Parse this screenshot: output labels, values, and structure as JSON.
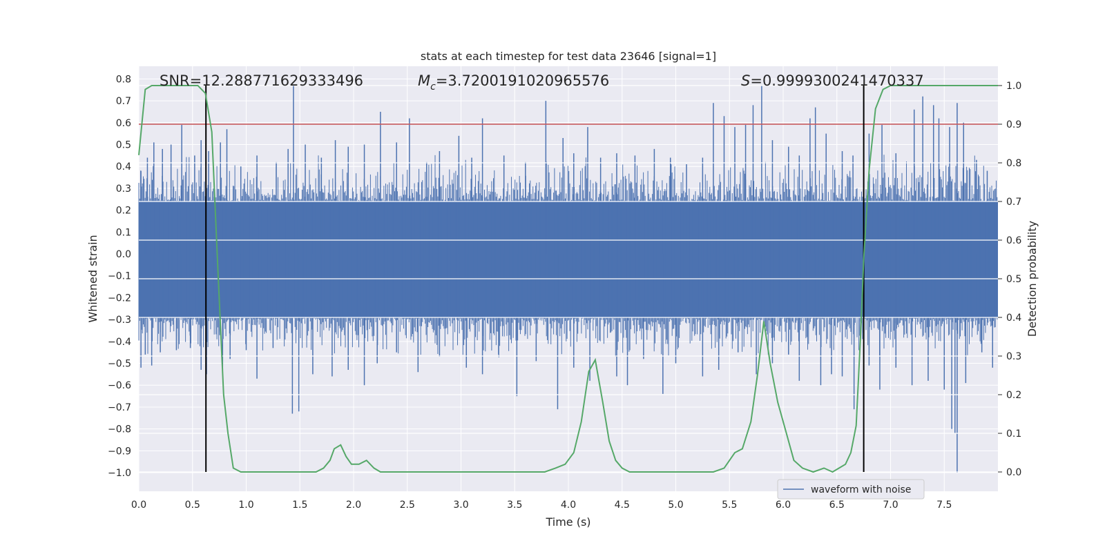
{
  "chart_data": {
    "type": "line",
    "title": "stats at each timestep for test data 23646 [signal=1]",
    "xlabel": "Time (s)",
    "ylabel": "Whitened strain",
    "y2label": "Detection probability",
    "xlim": [
      0.0,
      8.0
    ],
    "ylim": [
      -1.085,
      0.858
    ],
    "y2lim": [
      -0.05,
      1.05
    ],
    "xticks": [
      "0.0",
      "0.5",
      "1.0",
      "1.5",
      "2.0",
      "2.5",
      "3.0",
      "3.5",
      "4.0",
      "4.5",
      "5.0",
      "5.5",
      "6.0",
      "6.5",
      "7.0",
      "7.5"
    ],
    "yticks": [
      "0.8",
      "0.7",
      "0.6",
      "0.5",
      "0.4",
      "0.3",
      "0.2",
      "0.1",
      "0.0",
      "-0.1",
      "-0.2",
      "-0.3",
      "-0.4",
      "-0.5",
      "-0.6",
      "-0.7",
      "-0.8",
      "-0.9",
      "-1.0"
    ],
    "y2ticks": [
      "1.0",
      "0.9",
      "0.8",
      "0.7",
      "0.6",
      "0.5",
      "0.4",
      "0.3",
      "0.2",
      "0.1",
      "0.0"
    ],
    "annotations": {
      "snr": "SNR=12.288771629333496",
      "mc_symbol": "M",
      "mc_sub": "c",
      "mc_value": "=3.7200191020965576",
      "s_symbol": "S",
      "s_value": "=0.9999300241470337"
    },
    "threshold": 0.9,
    "vlines": [
      0.625,
      6.75
    ],
    "waveform": {
      "name": "waveform with noise",
      "color": "#4c72b0",
      "band_low": -0.29,
      "band_high": 0.24,
      "spikes_up": [
        [
          0.02,
          0.38
        ],
        [
          0.08,
          0.44
        ],
        [
          0.14,
          0.51
        ],
        [
          0.22,
          0.48
        ],
        [
          0.3,
          0.5
        ],
        [
          0.4,
          0.59
        ],
        [
          0.52,
          0.45
        ],
        [
          0.58,
          0.52
        ],
        [
          0.65,
          0.47
        ],
        [
          0.76,
          0.51
        ],
        [
          0.82,
          0.57
        ],
        [
          0.95,
          0.4
        ],
        [
          1.1,
          0.45
        ],
        [
          1.28,
          0.42
        ],
        [
          1.39,
          0.48
        ],
        [
          1.44,
          0.77
        ],
        [
          1.55,
          0.5
        ],
        [
          1.7,
          0.44
        ],
        [
          1.83,
          0.52
        ],
        [
          1.95,
          0.49
        ],
        [
          2.1,
          0.5
        ],
        [
          2.25,
          0.65
        ],
        [
          2.4,
          0.51
        ],
        [
          2.52,
          0.62
        ],
        [
          2.68,
          0.42
        ],
        [
          2.8,
          0.47
        ],
        [
          2.98,
          0.54
        ],
        [
          3.1,
          0.44
        ],
        [
          3.2,
          0.62
        ],
        [
          3.4,
          0.45
        ],
        [
          3.6,
          0.42
        ],
        [
          3.79,
          0.7
        ],
        [
          3.95,
          0.53
        ],
        [
          4.05,
          0.46
        ],
        [
          4.18,
          0.58
        ],
        [
          4.3,
          0.44
        ],
        [
          4.45,
          0.46
        ],
        [
          4.62,
          0.45
        ],
        [
          4.8,
          0.48
        ],
        [
          4.95,
          0.44
        ],
        [
          5.1,
          0.41
        ],
        [
          5.25,
          0.44
        ],
        [
          5.35,
          0.69
        ],
        [
          5.45,
          0.63
        ],
        [
          5.55,
          0.58
        ],
        [
          5.65,
          0.59
        ],
        [
          5.72,
          0.68
        ],
        [
          5.8,
          0.77
        ],
        [
          5.9,
          0.52
        ],
        [
          6.05,
          0.49
        ],
        [
          6.15,
          0.45
        ],
        [
          6.25,
          0.62
        ],
        [
          6.3,
          0.67
        ],
        [
          6.4,
          0.55
        ],
        [
          6.55,
          0.47
        ],
        [
          6.65,
          0.45
        ],
        [
          6.8,
          0.55
        ],
        [
          6.92,
          0.59
        ],
        [
          7.05,
          0.46
        ],
        [
          7.22,
          0.66
        ],
        [
          7.3,
          0.72
        ],
        [
          7.4,
          0.68
        ],
        [
          7.45,
          0.62
        ],
        [
          7.55,
          0.58
        ],
        [
          7.62,
          0.69
        ],
        [
          7.68,
          0.6
        ],
        [
          7.8,
          0.43
        ],
        [
          7.9,
          0.38
        ]
      ],
      "spikes_down": [
        [
          0.02,
          -0.52
        ],
        [
          0.06,
          -0.46
        ],
        [
          0.12,
          -0.51
        ],
        [
          0.2,
          -0.45
        ],
        [
          0.35,
          -0.44
        ],
        [
          0.48,
          -0.43
        ],
        [
          0.58,
          -0.53
        ],
        [
          0.63,
          -0.55
        ],
        [
          0.78,
          -0.53
        ],
        [
          0.85,
          -0.48
        ],
        [
          1.0,
          -0.44
        ],
        [
          1.1,
          -0.57
        ],
        [
          1.25,
          -0.43
        ],
        [
          1.43,
          -0.73
        ],
        [
          1.49,
          -0.72
        ],
        [
          1.62,
          -0.55
        ],
        [
          1.8,
          -0.56
        ],
        [
          1.95,
          -0.53
        ],
        [
          2.1,
          -0.6
        ],
        [
          2.22,
          -0.5
        ],
        [
          2.4,
          -0.45
        ],
        [
          2.6,
          -0.54
        ],
        [
          2.8,
          -0.47
        ],
        [
          3.05,
          -0.52
        ],
        [
          3.2,
          -0.55
        ],
        [
          3.35,
          -0.46
        ],
        [
          3.52,
          -0.65
        ],
        [
          3.7,
          -0.49
        ],
        [
          3.9,
          -0.71
        ],
        [
          4.05,
          -0.52
        ],
        [
          4.2,
          -0.58
        ],
        [
          4.45,
          -0.56
        ],
        [
          4.55,
          -0.6
        ],
        [
          4.7,
          -0.48
        ],
        [
          4.88,
          -0.64
        ],
        [
          5.0,
          -0.5
        ],
        [
          5.25,
          -0.56
        ],
        [
          5.4,
          -0.53
        ],
        [
          5.58,
          -0.45
        ],
        [
          5.75,
          -0.55
        ],
        [
          5.9,
          -0.5
        ],
        [
          6.05,
          -0.46
        ],
        [
          6.15,
          -0.58
        ],
        [
          6.35,
          -0.6
        ],
        [
          6.45,
          -0.55
        ],
        [
          6.55,
          -0.56
        ],
        [
          6.66,
          -0.71
        ],
        [
          6.8,
          -0.51
        ],
        [
          6.9,
          -0.62
        ],
        [
          7.05,
          -0.52
        ],
        [
          7.2,
          -0.6
        ],
        [
          7.35,
          -0.58
        ],
        [
          7.5,
          -0.62
        ],
        [
          7.57,
          -0.8
        ],
        [
          7.6,
          -0.82
        ],
        [
          7.62,
          -1.0
        ],
        [
          7.7,
          -0.59
        ],
        [
          7.85,
          -0.45
        ],
        [
          7.95,
          -0.52
        ]
      ]
    },
    "probability": {
      "color": "#55a868",
      "x": [
        0.0,
        0.06,
        0.12,
        0.25,
        0.4,
        0.55,
        0.62,
        0.68,
        0.74,
        0.79,
        0.83,
        0.88,
        0.95,
        1.05,
        1.15,
        1.3,
        1.5,
        1.65,
        1.72,
        1.78,
        1.82,
        1.88,
        1.93,
        1.98,
        2.05,
        2.12,
        2.19,
        2.25,
        2.4,
        2.6,
        2.8,
        3.0,
        3.2,
        3.4,
        3.6,
        3.78,
        3.88,
        3.97,
        4.05,
        4.12,
        4.19,
        4.25,
        4.32,
        4.38,
        4.44,
        4.5,
        4.57,
        4.65,
        4.8,
        5.0,
        5.2,
        5.35,
        5.45,
        5.55,
        5.62,
        5.7,
        5.76,
        5.82,
        5.88,
        5.95,
        6.03,
        6.1,
        6.18,
        6.28,
        6.38,
        6.46,
        6.52,
        6.58,
        6.63,
        6.68,
        6.72,
        6.75,
        6.8,
        6.86,
        6.93,
        7.0,
        7.1,
        7.25,
        7.4,
        7.55,
        7.7,
        7.85,
        8.0
      ],
      "y": [
        0.82,
        0.99,
        1.0,
        1.0,
        1.0,
        1.0,
        0.98,
        0.88,
        0.5,
        0.2,
        0.1,
        0.01,
        0.0,
        0.0,
        0.0,
        0.0,
        0.0,
        0.0,
        0.01,
        0.03,
        0.06,
        0.07,
        0.04,
        0.02,
        0.02,
        0.03,
        0.01,
        0.0,
        0.0,
        0.0,
        0.0,
        0.0,
        0.0,
        0.0,
        0.0,
        0.0,
        0.01,
        0.02,
        0.05,
        0.13,
        0.26,
        0.29,
        0.18,
        0.08,
        0.03,
        0.01,
        0.0,
        0.0,
        0.0,
        0.0,
        0.0,
        0.0,
        0.01,
        0.05,
        0.06,
        0.13,
        0.25,
        0.39,
        0.28,
        0.18,
        0.1,
        0.03,
        0.01,
        0.0,
        0.01,
        0.0,
        0.01,
        0.02,
        0.05,
        0.12,
        0.35,
        0.55,
        0.78,
        0.94,
        0.99,
        1.0,
        1.0,
        1.0,
        1.0,
        1.0,
        1.0,
        1.0,
        1.0
      ]
    },
    "legend": {
      "position": "lower-right",
      "entries": [
        "waveform with noise"
      ]
    },
    "grid": true,
    "colors": {
      "threshold": "#c44e52",
      "vline": "#000000",
      "background": "#eaeaf2",
      "grid": "#ffffff"
    }
  }
}
